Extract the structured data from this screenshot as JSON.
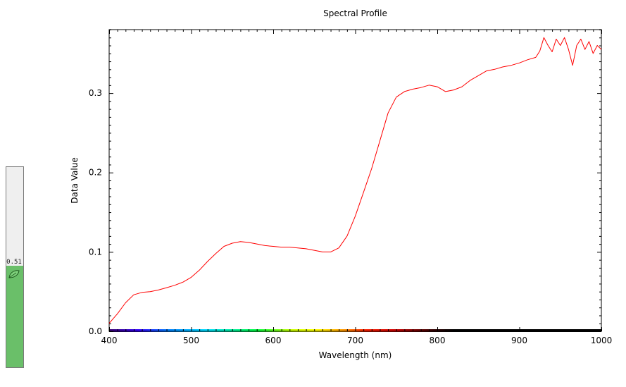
{
  "gauge": {
    "value_label": "0.51",
    "level": 0.51,
    "fill_color": "#6abf69",
    "icon": "leaf-icon"
  },
  "chart_data": {
    "type": "line",
    "title": "Spectral Profile",
    "xlabel": "Wavelength (nm)",
    "ylabel": "Data Value",
    "xlim": [
      400,
      1000
    ],
    "ylim": [
      0,
      0.38
    ],
    "xticks": [
      400,
      500,
      600,
      700,
      800,
      900,
      1000
    ],
    "xtick_labels": [
      "400",
      "500",
      "600",
      "700",
      "800",
      "900",
      "1000"
    ],
    "yticks": [
      0,
      0.1,
      0.2,
      0.3
    ],
    "ytick_labels": [
      "0.0",
      "0.1",
      "0.2",
      "0.3"
    ],
    "grid": false,
    "series": [
      {
        "color": "#ff0000",
        "x": [
          400,
          410,
          420,
          430,
          440,
          450,
          460,
          470,
          480,
          490,
          500,
          510,
          520,
          530,
          540,
          550,
          560,
          570,
          580,
          590,
          600,
          610,
          620,
          630,
          640,
          650,
          660,
          670,
          680,
          690,
          700,
          710,
          720,
          730,
          740,
          750,
          760,
          770,
          780,
          790,
          800,
          810,
          820,
          830,
          840,
          850,
          860,
          870,
          880,
          890,
          900,
          910,
          920,
          925,
          930,
          935,
          940,
          945,
          950,
          955,
          960,
          965,
          970,
          975,
          980,
          985,
          990,
          995,
          1000
        ],
        "y": [
          0.01,
          0.022,
          0.036,
          0.046,
          0.049,
          0.05,
          0.052,
          0.055,
          0.058,
          0.062,
          0.068,
          0.077,
          0.088,
          0.098,
          0.107,
          0.111,
          0.113,
          0.112,
          0.11,
          0.108,
          0.107,
          0.106,
          0.106,
          0.105,
          0.104,
          0.102,
          0.1,
          0.1,
          0.105,
          0.12,
          0.145,
          0.175,
          0.205,
          0.24,
          0.275,
          0.295,
          0.302,
          0.305,
          0.307,
          0.31,
          0.308,
          0.302,
          0.304,
          0.308,
          0.316,
          0.322,
          0.328,
          0.33,
          0.333,
          0.335,
          0.338,
          0.342,
          0.345,
          0.353,
          0.37,
          0.36,
          0.352,
          0.368,
          0.36,
          0.37,
          0.355,
          0.335,
          0.36,
          0.368,
          0.355,
          0.365,
          0.35,
          0.36,
          0.355
        ]
      }
    ]
  }
}
